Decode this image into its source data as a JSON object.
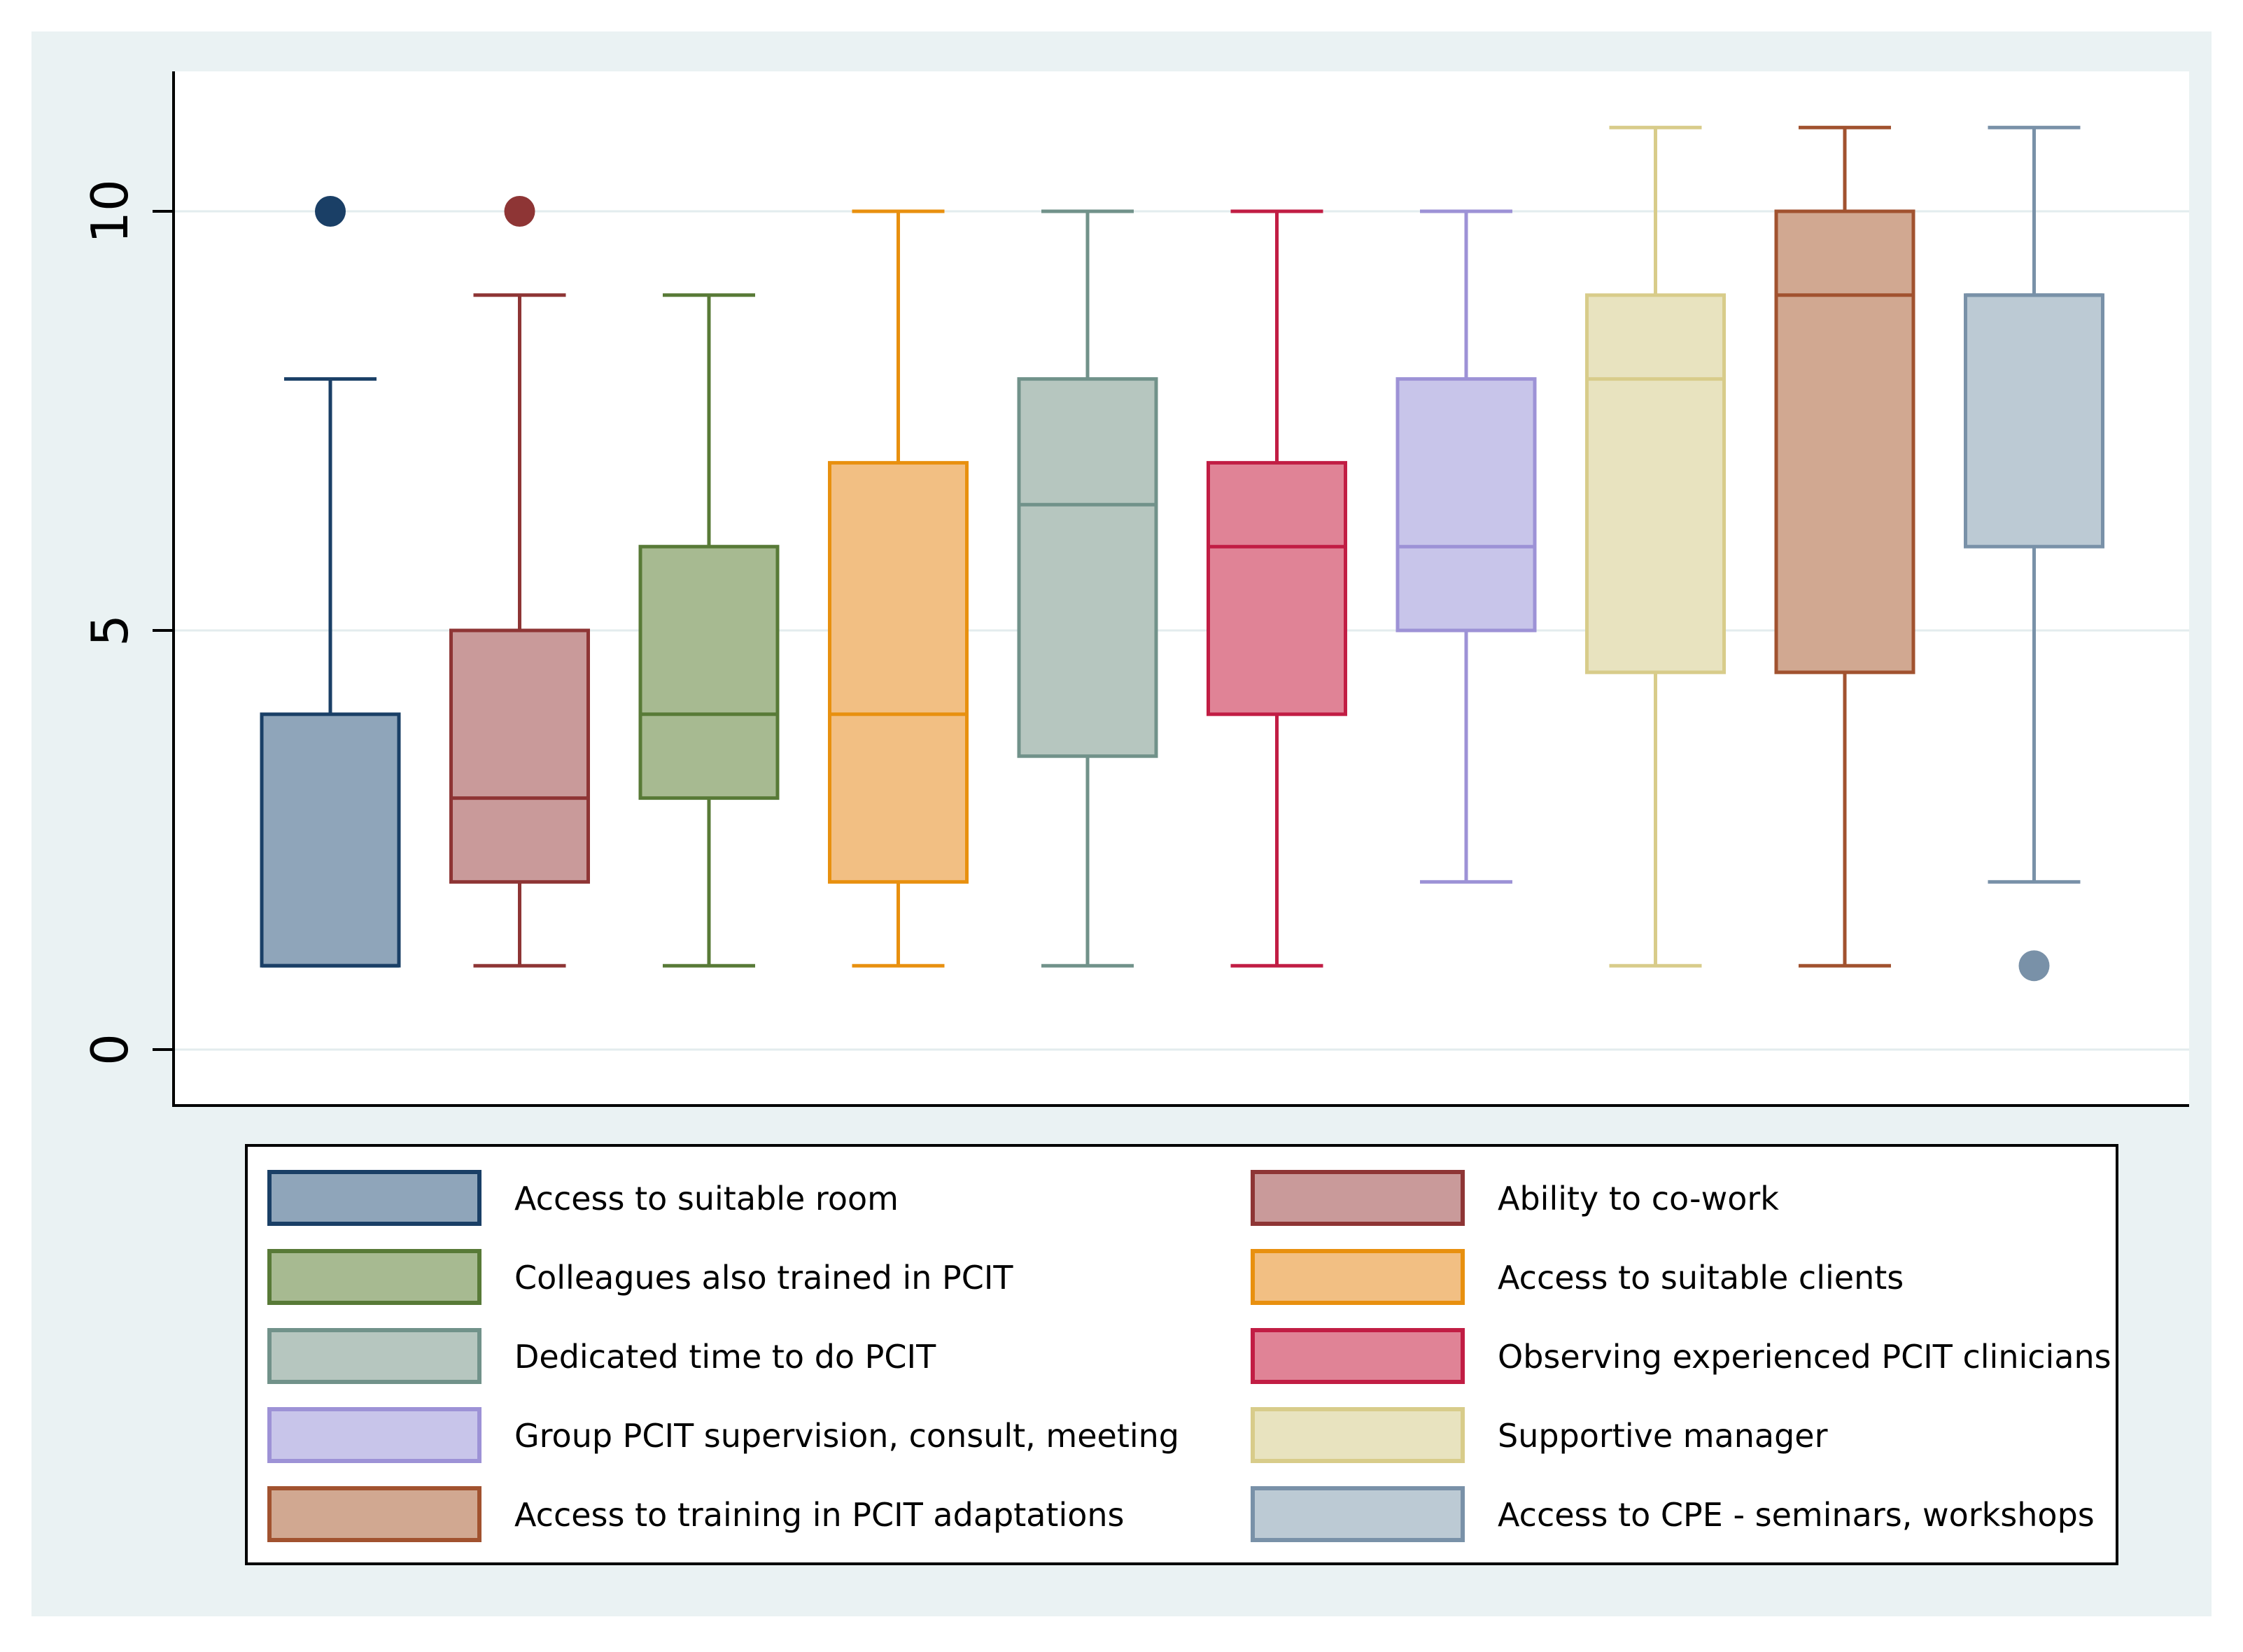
{
  "chart_data": {
    "type": "box",
    "title": "",
    "xlabel": "",
    "ylabel": "",
    "ylim": [
      -0.7,
      11.7
    ],
    "yticks": [
      0,
      5,
      10
    ],
    "ytick_labels": [
      "0",
      "5",
      "10"
    ],
    "grid": true,
    "legend_position": "bottom",
    "series": [
      {
        "name": "Access to suitable room",
        "whisker_low": 1,
        "q1": 1,
        "median": 1,
        "q3": 4,
        "whisker_high": 8,
        "outliers": [
          10
        ],
        "fill": "#8FA5BA",
        "stroke": "#1A3F66"
      },
      {
        "name": "Ability to co-work",
        "whisker_low": 1,
        "q1": 2,
        "median": 3,
        "q3": 5,
        "whisker_high": 9,
        "outliers": [
          10
        ],
        "fill": "#C99A9A",
        "stroke": "#8E3535"
      },
      {
        "name": "Colleagues also trained in PCIT",
        "whisker_low": 1,
        "q1": 3,
        "median": 4,
        "q3": 6,
        "whisker_high": 9,
        "outliers": [],
        "fill": "#A7BA91",
        "stroke": "#587A37"
      },
      {
        "name": "Access to suitable clients",
        "whisker_low": 1,
        "q1": 2,
        "median": 4,
        "q3": 7,
        "whisker_high": 10,
        "outliers": [],
        "fill": "#F2BF83",
        "stroke": "#E8900F"
      },
      {
        "name": "Dedicated time to do PCIT",
        "whisker_low": 1,
        "q1": 3.5,
        "median": 6.5,
        "q3": 8,
        "whisker_high": 10,
        "outliers": [],
        "fill": "#B6C6BF",
        "stroke": "#71928A"
      },
      {
        "name": "Observing experienced PCIT clinicians",
        "whisker_low": 1,
        "q1": 4,
        "median": 6,
        "q3": 7,
        "whisker_high": 10,
        "outliers": [],
        "fill": "#E08396",
        "stroke": "#C11D44"
      },
      {
        "name": "Group PCIT supervision, consult, meeting",
        "whisker_low": 2,
        "q1": 5,
        "median": 6,
        "q3": 8,
        "whisker_high": 10,
        "outliers": [],
        "fill": "#C8C5EA",
        "stroke": "#9D92D6"
      },
      {
        "name": "Supportive manager",
        "whisker_low": 1,
        "q1": 4.5,
        "median": 8,
        "q3": 9,
        "whisker_high": 11,
        "outliers": [],
        "fill": "#E8E3BF",
        "stroke": "#D8CC8A"
      },
      {
        "name": "Access to training in PCIT adaptations",
        "whisker_low": 1,
        "q1": 4.5,
        "median": 9,
        "q3": 10,
        "whisker_high": 11,
        "outliers": [],
        "fill": "#D1A891",
        "stroke": "#A1522F"
      },
      {
        "name": "Access to CPE - seminars, workshops",
        "whisker_low": 2,
        "q1": 6,
        "median": 9,
        "q3": 9,
        "whisker_high": 11,
        "outliers": [
          1
        ],
        "fill": "#BCCAD4",
        "stroke": "#7991A8"
      }
    ]
  }
}
